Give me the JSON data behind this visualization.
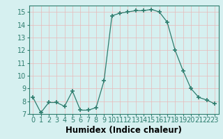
{
  "x": [
    0,
    1,
    2,
    3,
    4,
    5,
    6,
    7,
    8,
    9,
    10,
    11,
    12,
    13,
    14,
    15,
    16,
    17,
    18,
    19,
    20,
    21,
    22,
    23
  ],
  "y": [
    8.3,
    7.1,
    7.9,
    7.9,
    7.6,
    8.8,
    7.3,
    7.3,
    7.5,
    9.6,
    14.7,
    14.9,
    15.0,
    15.1,
    15.1,
    15.2,
    15.0,
    14.2,
    12.0,
    10.4,
    9.0,
    8.3,
    8.1,
    7.8
  ],
  "xlabel": "Humidex (Indice chaleur)",
  "ylim": [
    7,
    15.5
  ],
  "xlim": [
    -0.5,
    23.5
  ],
  "yticks": [
    7,
    8,
    9,
    10,
    11,
    12,
    13,
    14,
    15
  ],
  "xticks": [
    0,
    1,
    2,
    3,
    4,
    5,
    6,
    7,
    8,
    9,
    10,
    11,
    12,
    13,
    14,
    15,
    16,
    17,
    18,
    19,
    20,
    21,
    22,
    23
  ],
  "line_color": "#2e7d6e",
  "marker": "+",
  "marker_size": 4,
  "bg_color": "#d6f0f0",
  "grid_color": "#c8e8e8",
  "tick_label_fontsize": 7,
  "xlabel_fontsize": 8.5
}
